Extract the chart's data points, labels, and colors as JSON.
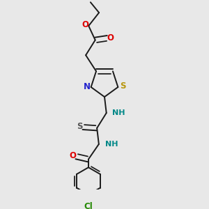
{
  "bg_color": "#e8e8e8",
  "bond_color": "#1a1a1a",
  "bond_width": 1.4,
  "figsize": [
    3.0,
    3.0
  ],
  "dpi": 100,
  "xlim": [
    0.18,
    0.82
  ],
  "ylim": [
    0.0,
    1.0
  ]
}
